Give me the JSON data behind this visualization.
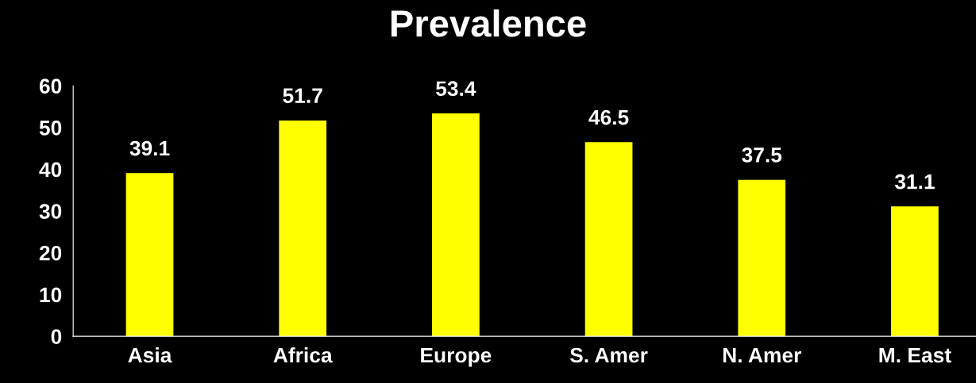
{
  "chart_data": {
    "type": "bar",
    "title": "Prevalence",
    "categories": [
      "Asia",
      "Africa",
      "Europe",
      "S. Amer",
      "N. Amer",
      "M. East"
    ],
    "values": [
      39.1,
      51.7,
      53.4,
      46.5,
      37.5,
      31.1
    ],
    "color": "#ffff00",
    "ylim": [
      0,
      60
    ],
    "yticks": [
      0,
      10,
      20,
      30,
      40,
      50,
      60
    ],
    "data_labels": true,
    "grid": false,
    "legend": false
  }
}
